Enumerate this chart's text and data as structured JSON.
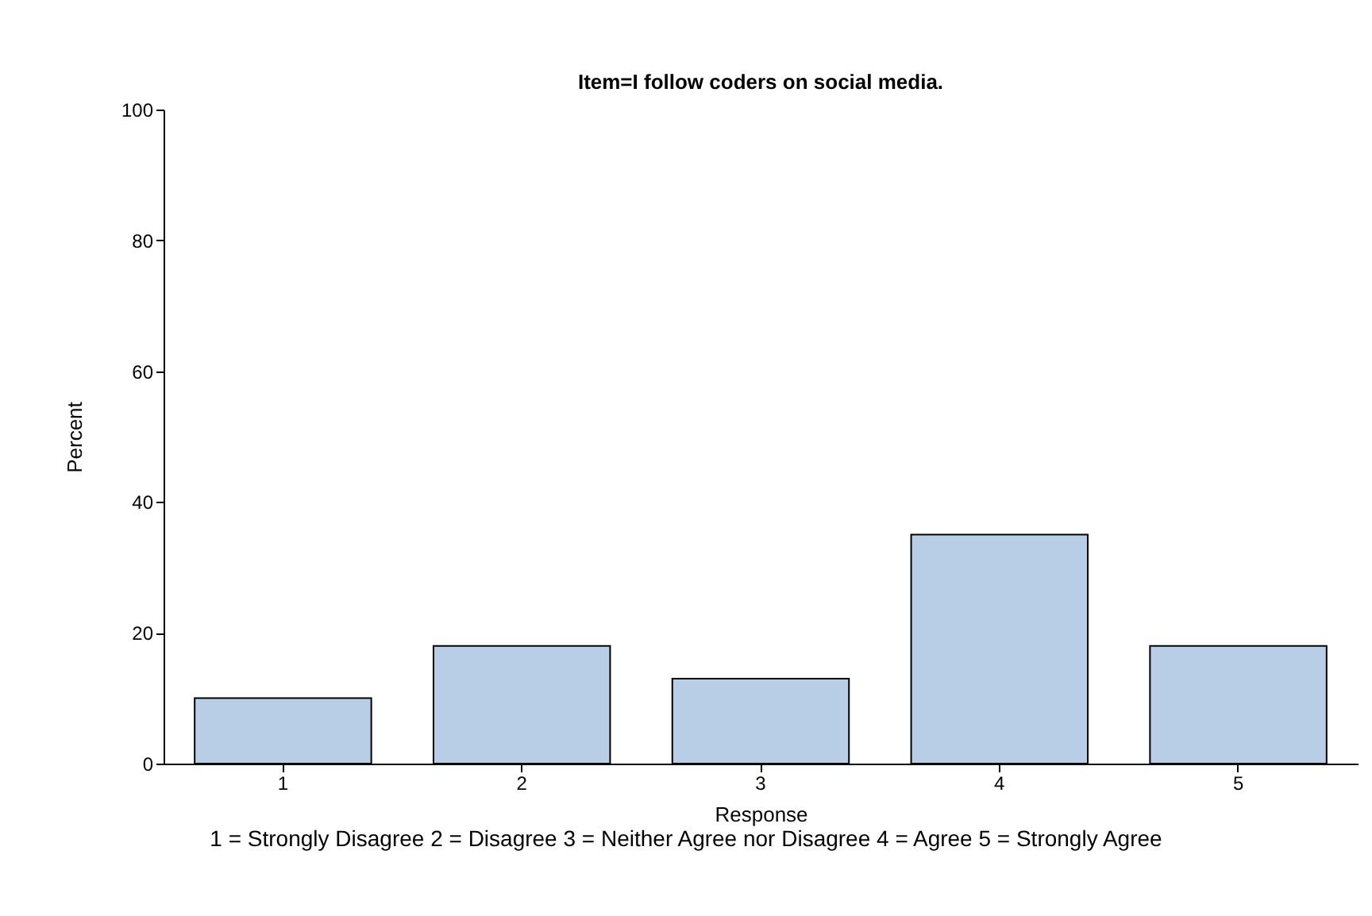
{
  "chart_data": {
    "type": "bar",
    "title": "Item=I follow coders on social media.",
    "xlabel": "Response",
    "ylabel": "Percent",
    "categories": [
      "1",
      "2",
      "3",
      "4",
      "5"
    ],
    "values": [
      10,
      18,
      13,
      35,
      18
    ],
    "color": "#b8cde6",
    "ylim": [
      0,
      100
    ],
    "yticks": [
      0,
      20,
      40,
      60,
      80,
      100
    ],
    "grid": false,
    "annotations": [
      "1 = Strongly Disagree 2 = Disagree 3 = Neither Agree nor Disagree 4 = Agree 5 = Strongly Agree"
    ]
  }
}
